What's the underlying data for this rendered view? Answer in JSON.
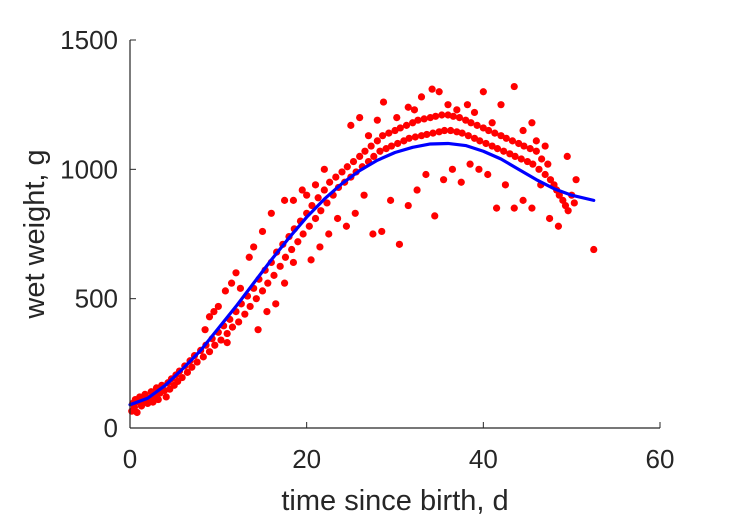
{
  "chart_data": {
    "type": "scatter",
    "title": "",
    "xlabel": "time since birth, d",
    "ylabel": "wet weight, g",
    "xlim": [
      0,
      60
    ],
    "ylim": [
      0,
      1500
    ],
    "xticks": [
      0,
      20,
      40,
      60
    ],
    "yticks": [
      0,
      500,
      1000,
      1500
    ],
    "grid": false,
    "legend": "none",
    "series": [
      {
        "kind": "points",
        "color": "#ff0000",
        "points": [
          [
            0.2,
            65
          ],
          [
            0.3,
            95
          ],
          [
            0.5,
            80
          ],
          [
            0.6,
            110
          ],
          [
            0.8,
            60
          ],
          [
            1.0,
            100
          ],
          [
            1.1,
            120
          ],
          [
            1.3,
            85
          ],
          [
            1.5,
            105
          ],
          [
            1.7,
            130
          ],
          [
            2.0,
            95
          ],
          [
            2.2,
            115
          ],
          [
            2.4,
            140
          ],
          [
            2.6,
            100
          ],
          [
            2.8,
            125
          ],
          [
            3.0,
            155
          ],
          [
            3.2,
            110
          ],
          [
            3.4,
            135
          ],
          [
            3.6,
            165
          ],
          [
            3.9,
            145
          ],
          [
            4.1,
            120
          ],
          [
            4.3,
            175
          ],
          [
            4.5,
            150
          ],
          [
            4.7,
            190
          ],
          [
            5.0,
            165
          ],
          [
            5.2,
            205
          ],
          [
            5.4,
            180
          ],
          [
            5.6,
            220
          ],
          [
            5.9,
            195
          ],
          [
            6.2,
            240
          ],
          [
            6.5,
            215
          ],
          [
            6.8,
            260
          ],
          [
            7.0,
            235
          ],
          [
            7.3,
            280
          ],
          [
            7.6,
            255
          ],
          [
            8.0,
            300
          ],
          [
            8.3,
            275
          ],
          [
            8.6,
            320
          ],
          [
            9.0,
            295
          ],
          [
            9.3,
            345
          ],
          [
            9.6,
            320
          ],
          [
            10.0,
            370
          ],
          [
            10.3,
            340
          ],
          [
            10.6,
            395
          ],
          [
            11.0,
            365
          ],
          [
            11.3,
            420
          ],
          [
            11.6,
            390
          ],
          [
            12.0,
            450
          ],
          [
            12.3,
            410
          ],
          [
            12.6,
            480
          ],
          [
            13.0,
            440
          ],
          [
            13.3,
            510
          ],
          [
            13.6,
            470
          ],
          [
            14.0,
            540
          ],
          [
            14.3,
            500
          ],
          [
            14.6,
            575
          ],
          [
            15.0,
            530
          ],
          [
            15.3,
            610
          ],
          [
            15.6,
            560
          ],
          [
            16.0,
            640
          ],
          [
            16.3,
            590
          ],
          [
            16.6,
            680
          ],
          [
            17.0,
            625
          ],
          [
            17.3,
            710
          ],
          [
            17.6,
            660
          ],
          [
            18.0,
            740
          ],
          [
            18.3,
            690
          ],
          [
            18.6,
            770
          ],
          [
            19.0,
            720
          ],
          [
            19.3,
            800
          ],
          [
            19.6,
            750
          ],
          [
            20.0,
            830
          ],
          [
            20.3,
            780
          ],
          [
            20.6,
            860
          ],
          [
            21.0,
            810
          ],
          [
            21.3,
            890
          ],
          [
            21.6,
            840
          ],
          [
            22.0,
            920
          ],
          [
            22.3,
            870
          ],
          [
            22.6,
            950
          ],
          [
            23.0,
            900
          ],
          [
            23.3,
            970
          ],
          [
            23.6,
            930
          ],
          [
            24.0,
            990
          ],
          [
            24.3,
            950
          ],
          [
            24.6,
            1010
          ],
          [
            25.0,
            970
          ],
          [
            25.3,
            1030
          ],
          [
            25.6,
            990
          ],
          [
            26.0,
            1050
          ],
          [
            26.3,
            1010
          ],
          [
            26.6,
            1070
          ],
          [
            27.0,
            1030
          ],
          [
            27.3,
            1090
          ],
          [
            27.6,
            1050
          ],
          [
            28.0,
            1110
          ],
          [
            28.3,
            1070
          ],
          [
            28.6,
            1130
          ],
          [
            29.0,
            1080
          ],
          [
            29.3,
            1140
          ],
          [
            29.6,
            1090
          ],
          [
            30.0,
            1150
          ],
          [
            30.3,
            1100
          ],
          [
            30.6,
            1160
          ],
          [
            31.0,
            1110
          ],
          [
            31.3,
            1170
          ],
          [
            31.6,
            1120
          ],
          [
            32.0,
            1180
          ],
          [
            32.3,
            1125
          ],
          [
            32.6,
            1190
          ],
          [
            33.0,
            1130
          ],
          [
            33.3,
            1195
          ],
          [
            33.6,
            1135
          ],
          [
            34.0,
            1200
          ],
          [
            34.3,
            1140
          ],
          [
            34.6,
            1205
          ],
          [
            35.0,
            1145
          ],
          [
            35.3,
            1210
          ],
          [
            35.6,
            1150
          ],
          [
            36.0,
            1210
          ],
          [
            36.3,
            1150
          ],
          [
            36.6,
            1205
          ],
          [
            37.0,
            1145
          ],
          [
            37.3,
            1200
          ],
          [
            37.6,
            1140
          ],
          [
            38.0,
            1190
          ],
          [
            38.3,
            1130
          ],
          [
            38.6,
            1180
          ],
          [
            39.0,
            1120
          ],
          [
            39.3,
            1170
          ],
          [
            39.6,
            1110
          ],
          [
            40.0,
            1160
          ],
          [
            40.3,
            1100
          ],
          [
            40.6,
            1150
          ],
          [
            41.0,
            1090
          ],
          [
            41.3,
            1140
          ],
          [
            41.6,
            1080
          ],
          [
            42.0,
            1130
          ],
          [
            42.3,
            1070
          ],
          [
            42.6,
            1120
          ],
          [
            43.0,
            1060
          ],
          [
            43.3,
            1110
          ],
          [
            43.6,
            1050
          ],
          [
            44.0,
            1100
          ],
          [
            44.3,
            1040
          ],
          [
            44.6,
            1090
          ],
          [
            45.0,
            1030
          ],
          [
            45.3,
            1080
          ],
          [
            45.6,
            1020
          ],
          [
            46.0,
            1070
          ],
          [
            46.3,
            1000
          ],
          [
            46.6,
            1040
          ],
          [
            47.0,
            980
          ],
          [
            47.3,
            1020
          ],
          [
            47.6,
            960
          ],
          [
            48.0,
            940
          ],
          [
            48.3,
            920
          ],
          [
            48.6,
            900
          ],
          [
            49.0,
            880
          ],
          [
            49.3,
            860
          ],
          [
            49.6,
            840
          ],
          [
            50.0,
            900
          ],
          [
            50.3,
            870
          ],
          [
            52.5,
            690
          ],
          [
            8.5,
            380
          ],
          [
            11.0,
            330
          ],
          [
            12.5,
            540
          ],
          [
            14.5,
            380
          ],
          [
            15.5,
            450
          ],
          [
            16.5,
            480
          ],
          [
            17.5,
            560
          ],
          [
            18.5,
            640
          ],
          [
            20.5,
            650
          ],
          [
            21.5,
            700
          ],
          [
            22.5,
            750
          ],
          [
            23.5,
            810
          ],
          [
            24.5,
            780
          ],
          [
            25.5,
            830
          ],
          [
            26.5,
            900
          ],
          [
            27.5,
            750
          ],
          [
            28.5,
            760
          ],
          [
            29.5,
            880
          ],
          [
            30.5,
            710
          ],
          [
            31.5,
            860
          ],
          [
            32.5,
            920
          ],
          [
            33.5,
            980
          ],
          [
            34.5,
            820
          ],
          [
            35.5,
            960
          ],
          [
            36.5,
            1000
          ],
          [
            37.5,
            950
          ],
          [
            38.5,
            1020
          ],
          [
            39.5,
            1000
          ],
          [
            40.5,
            980
          ],
          [
            41.5,
            850
          ],
          [
            42.5,
            940
          ],
          [
            43.5,
            850
          ],
          [
            44.5,
            880
          ],
          [
            45.5,
            850
          ],
          [
            46.5,
            940
          ],
          [
            47.5,
            810
          ],
          [
            48.5,
            780
          ],
          [
            49.5,
            1050
          ],
          [
            50.5,
            960
          ],
          [
            25.0,
            1170
          ],
          [
            26.0,
            1200
          ],
          [
            27.0,
            1130
          ],
          [
            28.0,
            1190
          ],
          [
            28.7,
            1260
          ],
          [
            30.2,
            1200
          ],
          [
            31.5,
            1240
          ],
          [
            32.2,
            1230
          ],
          [
            33.0,
            1280
          ],
          [
            34.2,
            1310
          ],
          [
            35.0,
            1300
          ],
          [
            36.0,
            1250
          ],
          [
            37.0,
            1230
          ],
          [
            38.2,
            1250
          ],
          [
            39.0,
            1220
          ],
          [
            40.0,
            1300
          ],
          [
            41.0,
            1180
          ],
          [
            42.0,
            1250
          ],
          [
            43.5,
            1320
          ],
          [
            44.5,
            1150
          ],
          [
            45.5,
            1180
          ],
          [
            46.0,
            1110
          ],
          [
            47.0,
            1090
          ],
          [
            22.0,
            1000
          ],
          [
            21.0,
            940
          ],
          [
            20.0,
            900
          ],
          [
            19.5,
            920
          ],
          [
            18.5,
            880
          ],
          [
            17.5,
            880
          ],
          [
            16.0,
            830
          ],
          [
            15.0,
            760
          ],
          [
            14.0,
            700
          ],
          [
            13.5,
            660
          ],
          [
            12.0,
            600
          ],
          [
            11.5,
            560
          ],
          [
            10.8,
            530
          ],
          [
            10.0,
            470
          ],
          [
            9.5,
            450
          ],
          [
            9.0,
            430
          ]
        ]
      },
      {
        "kind": "curve",
        "color": "#0000ff",
        "points": [
          [
            0,
            90
          ],
          [
            2,
            115
          ],
          [
            4,
            165
          ],
          [
            6,
            230
          ],
          [
            8,
            300
          ],
          [
            10,
            385
          ],
          [
            12,
            470
          ],
          [
            14,
            560
          ],
          [
            16,
            650
          ],
          [
            18,
            735
          ],
          [
            20,
            815
          ],
          [
            22,
            885
          ],
          [
            24,
            945
          ],
          [
            26,
            995
          ],
          [
            28,
            1035
          ],
          [
            30,
            1065
          ],
          [
            32,
            1085
          ],
          [
            34,
            1098
          ],
          [
            36,
            1100
          ],
          [
            38,
            1092
          ],
          [
            40,
            1070
          ],
          [
            42,
            1040
          ],
          [
            44,
            1000
          ],
          [
            46,
            960
          ],
          [
            48,
            925
          ],
          [
            50,
            900
          ],
          [
            52.5,
            880
          ]
        ]
      }
    ]
  }
}
